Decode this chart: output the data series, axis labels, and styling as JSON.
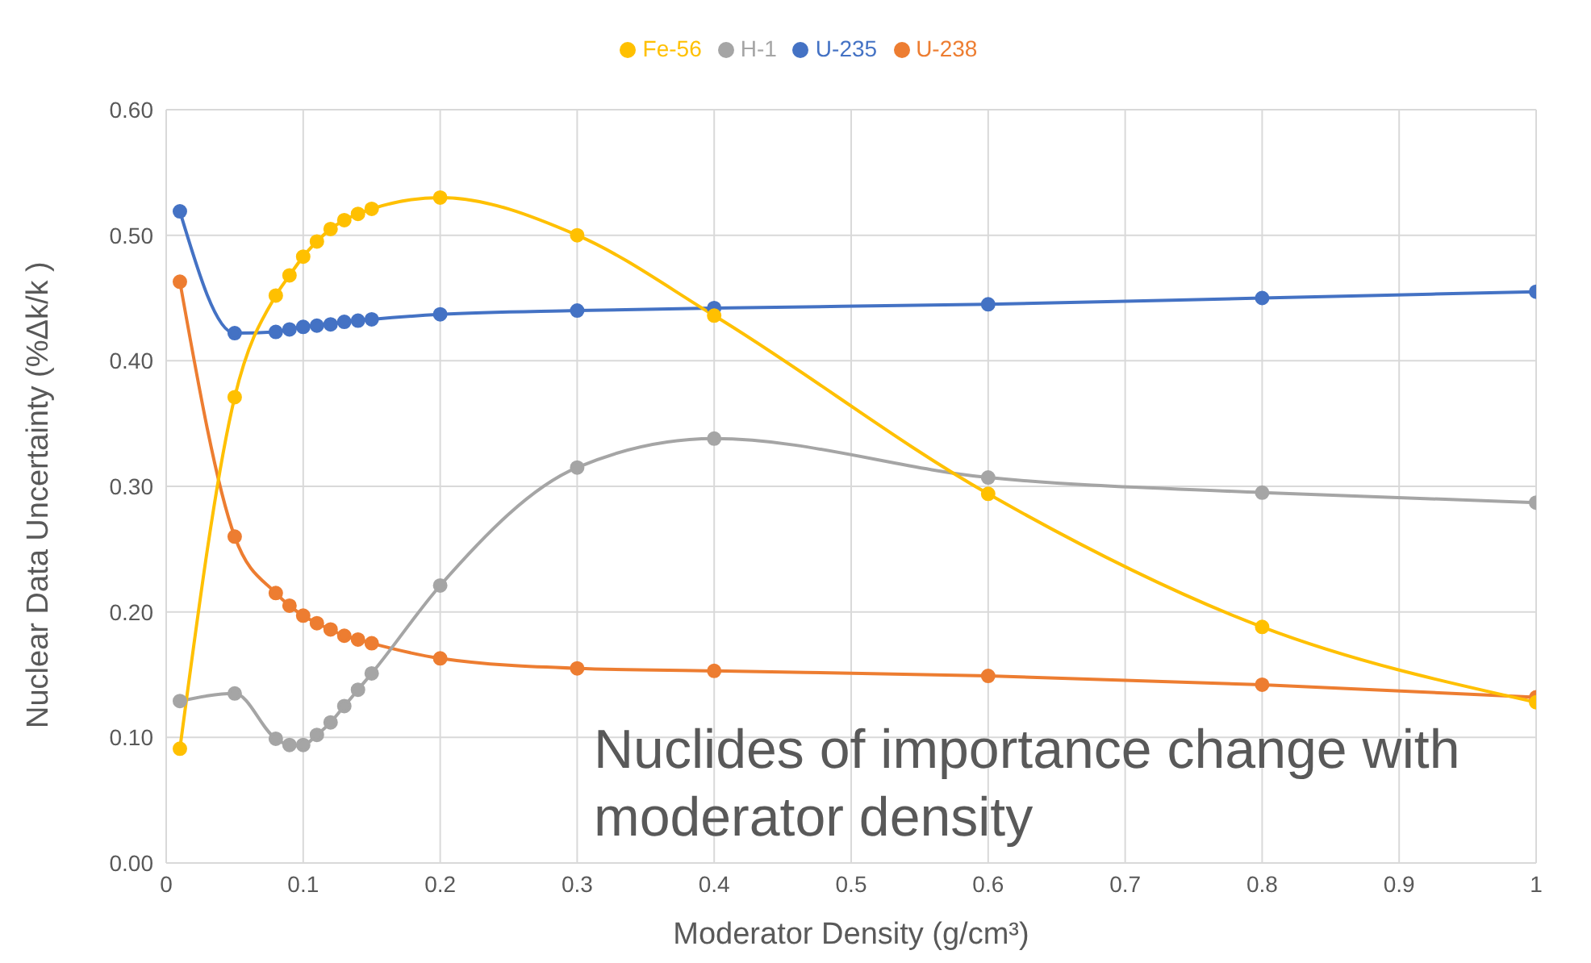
{
  "chart_data": {
    "type": "line",
    "xlabel": "Moderator Density (g/cm³)",
    "ylabel": "Nuclear Data Uncertainty (%Δk/k )",
    "annotations": [
      "Nuclides of importance change with moderator density"
    ],
    "x": [
      0.01,
      0.05,
      0.08,
      0.09,
      0.1,
      0.11,
      0.12,
      0.13,
      0.14,
      0.15,
      0.2,
      0.3,
      0.4,
      0.6,
      0.8,
      1
    ],
    "series": [
      {
        "name": "U-235",
        "color": "#4472c4",
        "values": [
          0.519,
          0.422,
          0.423,
          0.425,
          0.427,
          0.428,
          0.429,
          0.431,
          0.432,
          0.433,
          0.437,
          0.44,
          0.442,
          0.445,
          0.45,
          0.455
        ]
      },
      {
        "name": "U-238",
        "color": "#ed7d31",
        "values": [
          0.463,
          0.26,
          0.215,
          0.205,
          0.197,
          0.191,
          0.186,
          0.181,
          0.178,
          0.175,
          0.163,
          0.155,
          0.153,
          0.149,
          0.142,
          0.132
        ]
      },
      {
        "name": "H-1",
        "color": "#a5a5a5",
        "values": [
          0.129,
          0.135,
          0.099,
          0.094,
          0.094,
          0.102,
          0.112,
          0.125,
          0.138,
          0.151,
          0.221,
          0.315,
          0.338,
          0.307,
          0.295,
          0.287
        ]
      },
      {
        "name": "Fe-56",
        "color": "#ffc000",
        "values": [
          0.091,
          0.371,
          0.452,
          0.468,
          0.483,
          0.495,
          0.505,
          0.512,
          0.517,
          0.521,
          0.53,
          0.5,
          0.436,
          0.294,
          0.188,
          0.128
        ]
      }
    ],
    "xlim": [
      0,
      1
    ],
    "xticks": [
      0,
      0.1,
      0.2,
      0.3,
      0.4,
      0.5,
      0.6,
      0.7,
      0.8,
      0.9,
      1
    ],
    "ylim": [
      0,
      0.6
    ],
    "yticks": [
      {
        "value": 0,
        "label": "0.00"
      },
      {
        "value": 0.1,
        "label": "0.10"
      },
      {
        "value": 0.2,
        "label": "0.20"
      },
      {
        "value": 0.3,
        "label": "0.30"
      },
      {
        "value": 0.4,
        "label": "0.40"
      },
      {
        "value": 0.5,
        "label": "0.50"
      },
      {
        "value": 0.6,
        "label": "0.60"
      }
    ],
    "grid": true,
    "legend": "top",
    "marker": "circle",
    "line_style": "solid"
  }
}
